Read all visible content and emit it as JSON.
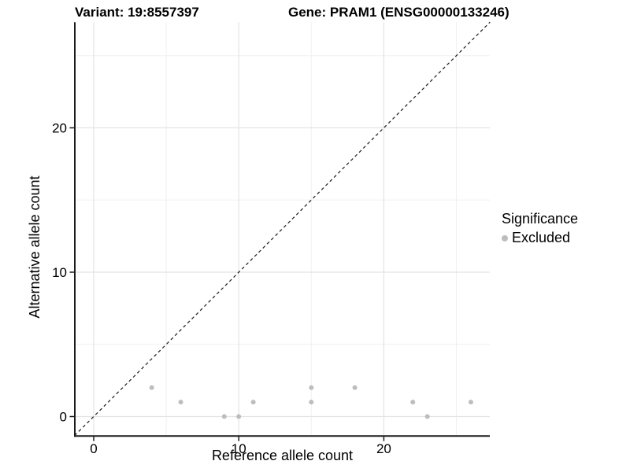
{
  "figure": {
    "title_left": "Variant: 19:8557397",
    "title_right": "Gene: PRAM1 (ENSG00000133246)"
  },
  "chart_data": {
    "type": "scatter",
    "xlabel": "Reference allele count",
    "ylabel": "Alternative allele count",
    "xlim": [
      -1.32,
      27.32
    ],
    "ylim": [
      -1.32,
      27.32
    ],
    "x_major_ticks": [
      0,
      10,
      20
    ],
    "y_major_ticks": [
      0,
      10,
      20
    ],
    "x_minor_gridlines": [
      5,
      15,
      25
    ],
    "y_minor_gridlines": [
      5,
      15,
      25
    ],
    "x_major_gridlines": [
      0,
      10,
      20
    ],
    "y_major_gridlines": [
      0,
      10,
      20
    ],
    "grid": true,
    "identity_line": {
      "style": "dashed",
      "equation": "y = x"
    },
    "series": [
      {
        "name": "Excluded",
        "color": "#bdbdbd",
        "points": [
          {
            "x": 4,
            "y": 2
          },
          {
            "x": 6,
            "y": 1
          },
          {
            "x": 9,
            "y": 0
          },
          {
            "x": 10,
            "y": 0
          },
          {
            "x": 11,
            "y": 1
          },
          {
            "x": 15,
            "y": 1
          },
          {
            "x": 15,
            "y": 2
          },
          {
            "x": 18,
            "y": 2
          },
          {
            "x": 22,
            "y": 1
          },
          {
            "x": 23,
            "y": 0
          },
          {
            "x": 26,
            "y": 1
          }
        ]
      }
    ],
    "legend": {
      "title": "Significance",
      "position": "right",
      "entries": [
        {
          "label": "Excluded",
          "color": "#bdbdbd",
          "marker": "circle"
        }
      ]
    },
    "colors": {
      "point": "#bdbdbd",
      "grid_major": "#e4e4e4",
      "grid_minor": "#f0f0f0",
      "axis_line": "#1a1a1a",
      "identity_line": "#1a1a1a",
      "text": "#000000"
    }
  }
}
